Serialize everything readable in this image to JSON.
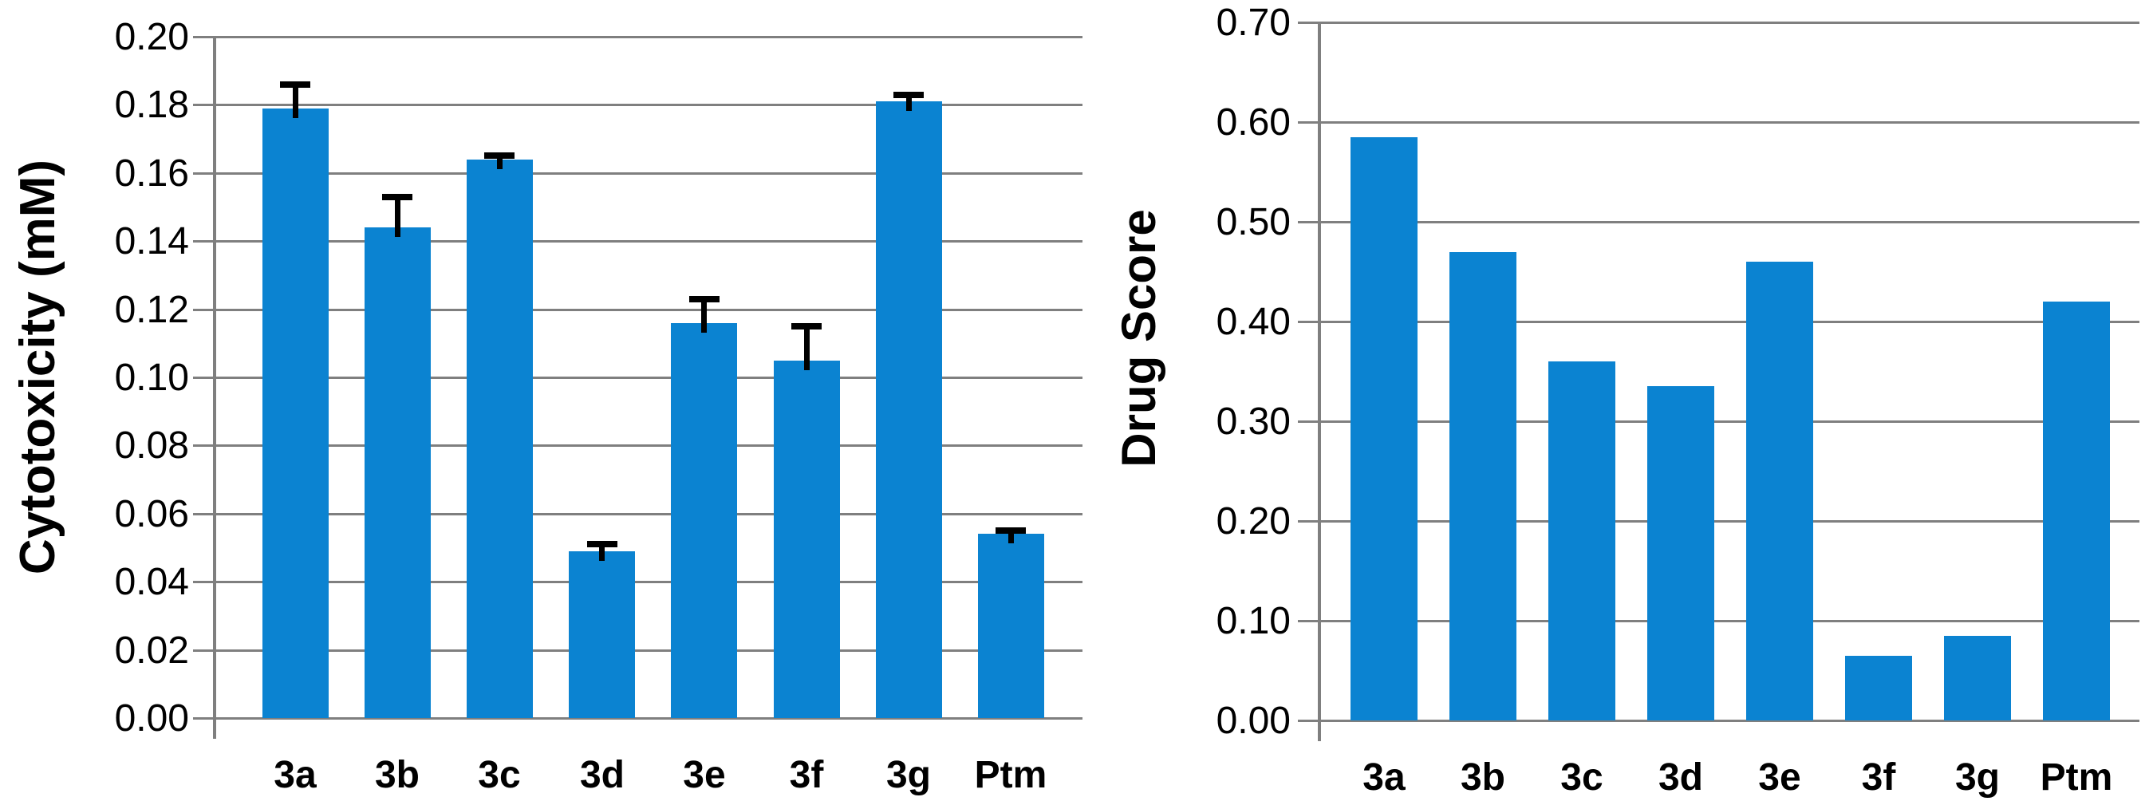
{
  "figure": {
    "background_color": "#ffffff",
    "bar_color": "#0b83d1",
    "gridline_color": "#7f7f7f",
    "text_color": "#000000",
    "error_bar_color": "#000000"
  },
  "chart_data": [
    {
      "type": "bar",
      "title": "",
      "ylabel": "Cytotoxicity (mM)",
      "xlabel": "",
      "categories": [
        "3a",
        "3b",
        "3c",
        "3d",
        "3e",
        "3f",
        "3g",
        "Ptm"
      ],
      "values": [
        0.179,
        0.144,
        0.164,
        0.049,
        0.116,
        0.105,
        0.181,
        0.054
      ],
      "error_bars_plus": [
        0.007,
        0.009,
        0.001,
        0.002,
        0.007,
        0.01,
        0.002,
        0.001
      ],
      "ylim": [
        0,
        0.2
      ],
      "ytick_step": 0.02,
      "y_ticks": [
        "0.20",
        "0.18",
        "0.16",
        "0.14",
        "0.12",
        "0.10",
        "0.08",
        "0.06",
        "0.04",
        "0.02",
        "0.00"
      ],
      "grid": true,
      "legend": false,
      "bar_color": "#0b83d1"
    },
    {
      "type": "bar",
      "title": "",
      "ylabel": "Drug Score",
      "xlabel": "",
      "categories": [
        "3a",
        "3b",
        "3c",
        "3d",
        "3e",
        "3f",
        "3g",
        "Ptm"
      ],
      "values": [
        0.585,
        0.47,
        0.36,
        0.335,
        0.46,
        0.065,
        0.085,
        0.42
      ],
      "error_bars_plus": [
        0,
        0,
        0,
        0,
        0,
        0,
        0,
        0
      ],
      "ylim": [
        0,
        0.7
      ],
      "ytick_step": 0.1,
      "y_ticks": [
        "0.70",
        "0.60",
        "0.50",
        "0.40",
        "0.30",
        "0.20",
        "0.10",
        "0.00"
      ],
      "grid": true,
      "legend": false,
      "bar_color": "#0b83d1"
    }
  ]
}
